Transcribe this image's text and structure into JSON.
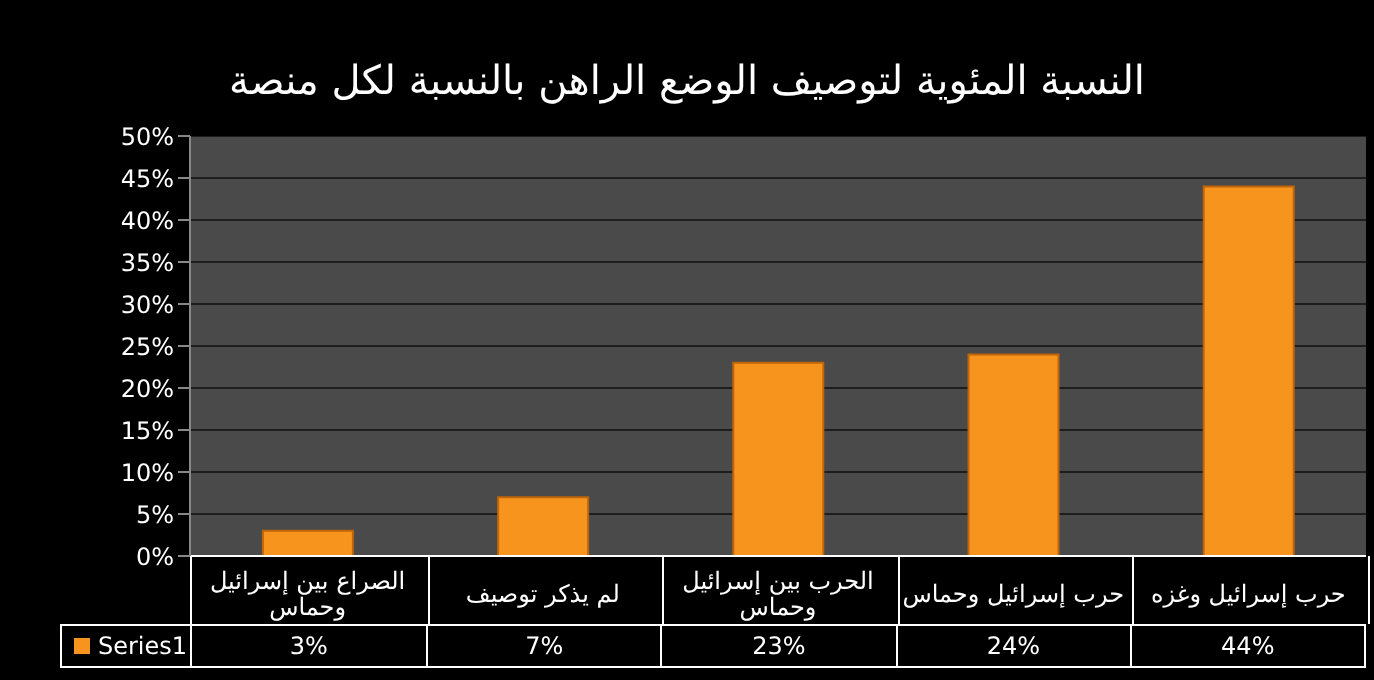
{
  "chart_data": {
    "type": "bar",
    "title": "النسبة المئوية لتوصيف الوضع الراهن بالنسبة لكل منصة",
    "categories": [
      "الصراع بين إسرائيل وحماس",
      "لم يذكر توصيف",
      "الحرب بين إسرائيل وحماس",
      "حرب إسرائيل وحماس",
      "حرب إسرائيل وغزه"
    ],
    "series": [
      {
        "name": "Series1",
        "color": "#f7941d",
        "values": [
          3,
          7,
          23,
          24,
          44
        ],
        "value_labels": [
          "3%",
          "7%",
          "23%",
          "24%",
          "44%"
        ]
      }
    ],
    "ylim": [
      0,
      50
    ],
    "yticks": [
      {
        "value": 0,
        "label": "0%"
      },
      {
        "value": 5,
        "label": "5%"
      },
      {
        "value": 10,
        "label": "10%"
      },
      {
        "value": 15,
        "label": "15%"
      },
      {
        "value": 20,
        "label": "20%"
      },
      {
        "value": 25,
        "label": "25%"
      },
      {
        "value": 30,
        "label": "30%"
      },
      {
        "value": 35,
        "label": "35%"
      },
      {
        "value": 40,
        "label": "40%"
      },
      {
        "value": 45,
        "label": "45%"
      },
      {
        "value": 50,
        "label": "50%"
      }
    ],
    "grid": "y",
    "legend": "bottom"
  }
}
